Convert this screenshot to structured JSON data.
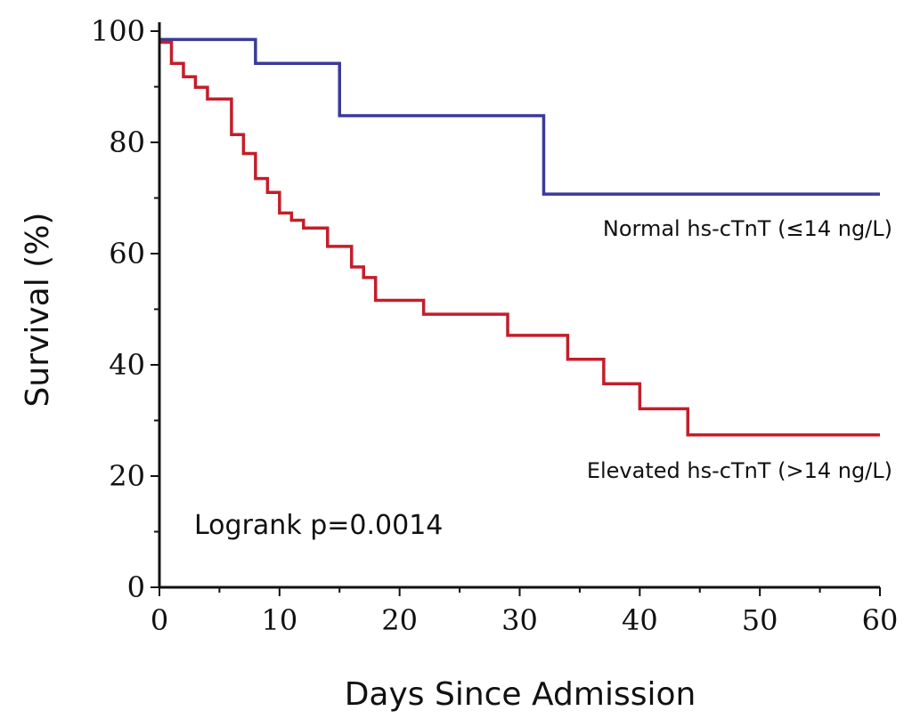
{
  "chart_data": {
    "type": "line",
    "step": true,
    "xlabel": "Days Since Admission",
    "ylabel": "Survival (%)",
    "xlim": [
      0,
      60
    ],
    "ylim": [
      0,
      100
    ],
    "x_ticks": [
      0,
      10,
      20,
      30,
      40,
      50,
      60
    ],
    "y_ticks": [
      0,
      20,
      40,
      60,
      80,
      100
    ],
    "grid": false,
    "annotation": "Logrank p=0.0014",
    "series": [
      {
        "name": "Normal hs-cTnT (≤14 ng/L)",
        "color": "#3a3a9c",
        "x": [
          0,
          8,
          15,
          32,
          60
        ],
        "y": [
          98.5,
          94.2,
          84.8,
          70.7,
          70.7
        ]
      },
      {
        "name": "Elevated hs-cTnT (>14 ng/L)",
        "color": "#c41e2a",
        "x": [
          0,
          1,
          2,
          3,
          4,
          6,
          7,
          8,
          9,
          10,
          11,
          12,
          14,
          16,
          17,
          18,
          22,
          29,
          34,
          37,
          40,
          44,
          60
        ],
        "y": [
          98.0,
          94.2,
          91.8,
          89.9,
          87.8,
          81.4,
          78.0,
          73.5,
          71.0,
          67.3,
          66.0,
          64.6,
          61.3,
          57.6,
          55.7,
          51.6,
          49.1,
          45.3,
          41.0,
          36.6,
          32.1,
          27.4,
          27.4
        ]
      }
    ]
  }
}
